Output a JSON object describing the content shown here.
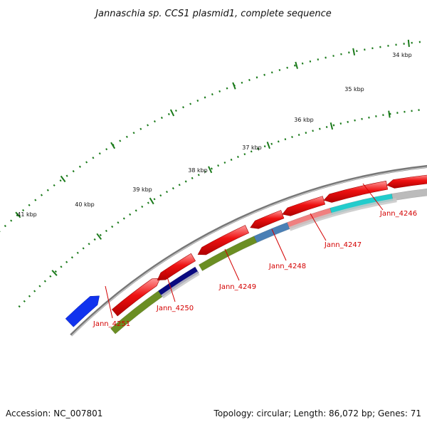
{
  "title": "Jannaschia sp. CCS1 plasmid1, complete sequence",
  "footer": {
    "accession": "Accession: NC_007801",
    "summary": "Topology: circular; Length: 86,072 bp; Genes: 71"
  },
  "scale_labels": [
    "34 kbp",
    "35 kbp",
    "36 kbp",
    "37 kbp",
    "38 kbp",
    "39 kbp",
    "40 kbp",
    "41 kbp"
  ],
  "gene_labels": [
    "Jann_4246",
    "Jann_4247",
    "Jann_4248",
    "Jann_4249",
    "Jann_4250",
    "Jann_4251"
  ],
  "colors": {
    "forward": "#ee1111",
    "blue_feature": "#1133ee",
    "backbone": "#888888",
    "tick": "#1a7a1a",
    "olive": "#6b8e23",
    "navy": "#0a0a80",
    "steel": "#4a7fb5",
    "salmon": "#f08080",
    "cyan": "#22cccc",
    "grey": "#bbbbbb",
    "label": "#d40000"
  }
}
